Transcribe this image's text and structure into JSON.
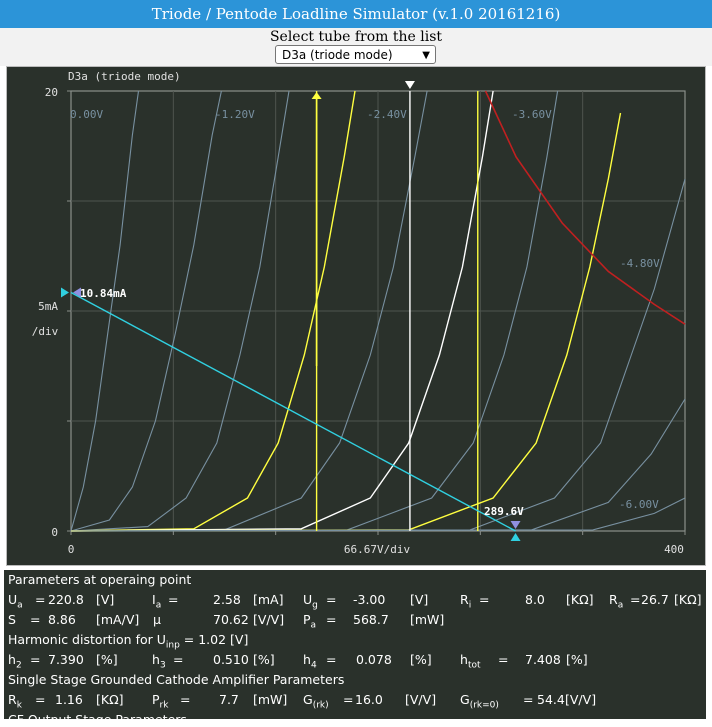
{
  "app": {
    "title": "Triode / Pentode Loadline Simulator (v.1.0 20161216)"
  },
  "selector": {
    "label": "Select tube from the list",
    "selected": "D3a (triode mode)"
  },
  "chart_data": {
    "type": "line",
    "title": "D3a (triode mode)",
    "xlabel": "66.67V/div",
    "ylabel_top": "5mA",
    "ylabel_bottom": "/div",
    "x_ticks": [
      "0",
      "400"
    ],
    "y_ticks": [
      "20",
      "0"
    ],
    "xlim": [
      0,
      400
    ],
    "ylim": [
      0,
      20
    ],
    "grid": true,
    "grid_lines": [
      "0.00V",
      "-1.20V",
      "-2.40V",
      "-3.60V",
      "-4.80V",
      "-6.00V"
    ],
    "curves": [
      {
        "ug": 0.0,
        "points": [
          [
            0,
            0
          ],
          [
            8,
            2
          ],
          [
            16,
            5
          ],
          [
            24,
            9
          ],
          [
            32,
            13
          ],
          [
            40,
            18
          ],
          [
            44,
            20
          ]
        ]
      },
      {
        "ug": -0.6,
        "points": [
          [
            0,
            0
          ],
          [
            25,
            0.5
          ],
          [
            40,
            2
          ],
          [
            55,
            5
          ],
          [
            68,
            9
          ],
          [
            80,
            13
          ],
          [
            92,
            18
          ],
          [
            98,
            20
          ]
        ]
      },
      {
        "ug": -1.2,
        "points": [
          [
            0,
            0
          ],
          [
            50,
            0.2
          ],
          [
            75,
            1.5
          ],
          [
            95,
            4
          ],
          [
            110,
            8
          ],
          [
            123,
            12
          ],
          [
            135,
            17
          ],
          [
            142,
            20
          ]
        ]
      },
      {
        "ug": -1.8,
        "points": [
          [
            0,
            0
          ],
          [
            80,
            0.1
          ],
          [
            115,
            1.5
          ],
          [
            135,
            4
          ],
          [
            152,
            8
          ],
          [
            165,
            12
          ],
          [
            178,
            17
          ],
          [
            185,
            20
          ]
        ]
      },
      {
        "ug": -2.4,
        "points": [
          [
            0,
            0
          ],
          [
            100,
            0.05
          ],
          [
            150,
            1.5
          ],
          [
            175,
            4
          ],
          [
            195,
            8
          ],
          [
            210,
            12
          ],
          [
            224,
            17
          ],
          [
            232,
            20
          ]
        ]
      },
      {
        "ug": -3.0,
        "points": [
          [
            0,
            0
          ],
          [
            150,
            0.1
          ],
          [
            195,
            1.5
          ],
          [
            220,
            4
          ],
          [
            240,
            8
          ],
          [
            255,
            12
          ],
          [
            268,
            17
          ],
          [
            275,
            20
          ]
        ]
      },
      {
        "ug": -3.6,
        "points": [
          [
            0,
            0
          ],
          [
            180,
            0.05
          ],
          [
            235,
            1.5
          ],
          [
            262,
            4
          ],
          [
            282,
            8
          ],
          [
            297,
            12
          ],
          [
            310,
            17
          ],
          [
            317,
            20
          ]
        ]
      },
      {
        "ug": -4.2,
        "points": [
          [
            0,
            0
          ],
          [
            220,
            0.05
          ],
          [
            275,
            1.5
          ],
          [
            303,
            4
          ],
          [
            323,
            8
          ],
          [
            338,
            12
          ],
          [
            350,
            16
          ],
          [
            358,
            19
          ]
        ]
      },
      {
        "ug": -4.8,
        "points": [
          [
            0,
            0
          ],
          [
            260,
            0.05
          ],
          [
            315,
            1.5
          ],
          [
            345,
            4
          ],
          [
            365,
            8
          ],
          [
            380,
            11
          ],
          [
            392,
            14
          ],
          [
            400,
            16
          ]
        ]
      },
      {
        "ug": -5.4,
        "points": [
          [
            0,
            0
          ],
          [
            300,
            0.05
          ],
          [
            350,
            1.3
          ],
          [
            378,
            3.5
          ],
          [
            400,
            6
          ]
        ]
      },
      {
        "ug": -6.0,
        "points": [
          [
            0,
            0
          ],
          [
            340,
            0.05
          ],
          [
            380,
            0.8
          ],
          [
            400,
            1.5
          ]
        ]
      }
    ],
    "highlight_curves": [
      {
        "color": "#ffff40",
        "ug": -1.8
      },
      {
        "color": "#ffffff",
        "ug": -3.0
      },
      {
        "color": "#ffff40",
        "ug": -4.2
      }
    ],
    "max_dissipation_curve": {
      "color": "#c02020",
      "points": [
        [
          270,
          20
        ],
        [
          290,
          17
        ],
        [
          320,
          14
        ],
        [
          350,
          11.8
        ],
        [
          380,
          10.3
        ],
        [
          400,
          9.4
        ]
      ]
    },
    "load_line": {
      "color": "#30d0e0",
      "from": [
        0,
        10.84
      ],
      "to": [
        289.6,
        0
      ]
    },
    "operating_point": {
      "ua": 220.8,
      "ia": 2.58
    },
    "vertical_markers": [
      {
        "color": "#ffff40",
        "x": 160
      },
      {
        "color": "#ffffff",
        "x": 220.8
      },
      {
        "color": "#ffff40",
        "x": 265
      }
    ],
    "markers": {
      "ia_max_label": "10.84mA",
      "ua_max_label": "289.6V"
    },
    "colors": {
      "background": "#2a312b",
      "grid": "#8a8f8a",
      "curves": "#7890a0",
      "text": "#e0e0e0"
    }
  },
  "params": {
    "header1": "Parameters at operaing point",
    "ua_label": "U",
    "ua_sub": "a",
    "ua_eq": "=",
    "ua_value": "220.8",
    "ua_unit": "[V]",
    "ia_label": "I",
    "ia_sub": "a",
    "ia_eq": "=",
    "ia_value": "2.58",
    "ia_unit": "[mA]",
    "ug_label": "U",
    "ug_sub": "g",
    "ug_eq": "=",
    "ug_value": "-3.00",
    "ug_unit": "[V]",
    "ri_label": "R",
    "ri_sub": "i",
    "ri_eq": "=",
    "ri_value": "8.0",
    "ri_unit": "[KΩ]",
    "ra_label": "R",
    "ra_sub": "a",
    "ra_eq": "=",
    "ra_value": "26.7",
    "ra_unit": "[KΩ]",
    "s_label": "S",
    "s_eq": "=",
    "s_value": "8.86",
    "s_unit": "[mA/V]",
    "mu_label": "μ",
    "mu_value": "70.62",
    "mu_unit": "[V/V]",
    "pa_label": "P",
    "pa_sub": "a",
    "pa_eq": "=",
    "pa_value": "568.7",
    "pa_unit": "[mW]",
    "header2_text": "Harmonic distortion for U",
    "header2_sub": "inp",
    "header2_rest": " = 1.02 [V]",
    "h2_label": "h",
    "h2_sub": "2",
    "h2_eq": "=",
    "h2_value": "7.390",
    "h2_unit": "[%]",
    "h3_label": "h",
    "h3_sub": "3",
    "h3_eq": "=",
    "h3_value": "0.510",
    "h3_unit": "[%]",
    "h4_label": "h",
    "h4_sub": "4",
    "h4_eq": "=",
    "h4_value": "0.078",
    "h4_unit": "[%]",
    "htot_label": "h",
    "htot_sub": "tot",
    "htot_eq": "=",
    "htot_value": "7.408",
    "htot_unit": "[%]",
    "header3": "Single Stage Grounded Cathode Amplifier Parameters",
    "rk_label": "R",
    "rk_sub": "k",
    "rk_eq": "=",
    "rk_value": "1.16",
    "rk_unit": "[KΩ]",
    "prk_label": "P",
    "prk_sub": "rk",
    "prk_eq": "=",
    "prk_value": "7.7",
    "prk_unit": "[mW]",
    "grk_label": "G",
    "grk_sub": "(rk)",
    "grk_eq": "=",
    "grk_value": "16.0",
    "grk_unit": "[V/V]",
    "grk0_label": "G",
    "grk0_sub": "(rk=0)",
    "grk0_eq": "=",
    "grk0_value": "54.4",
    "grk0_unit": "[V/V]",
    "header4": "CF Output Stage Parameters"
  }
}
